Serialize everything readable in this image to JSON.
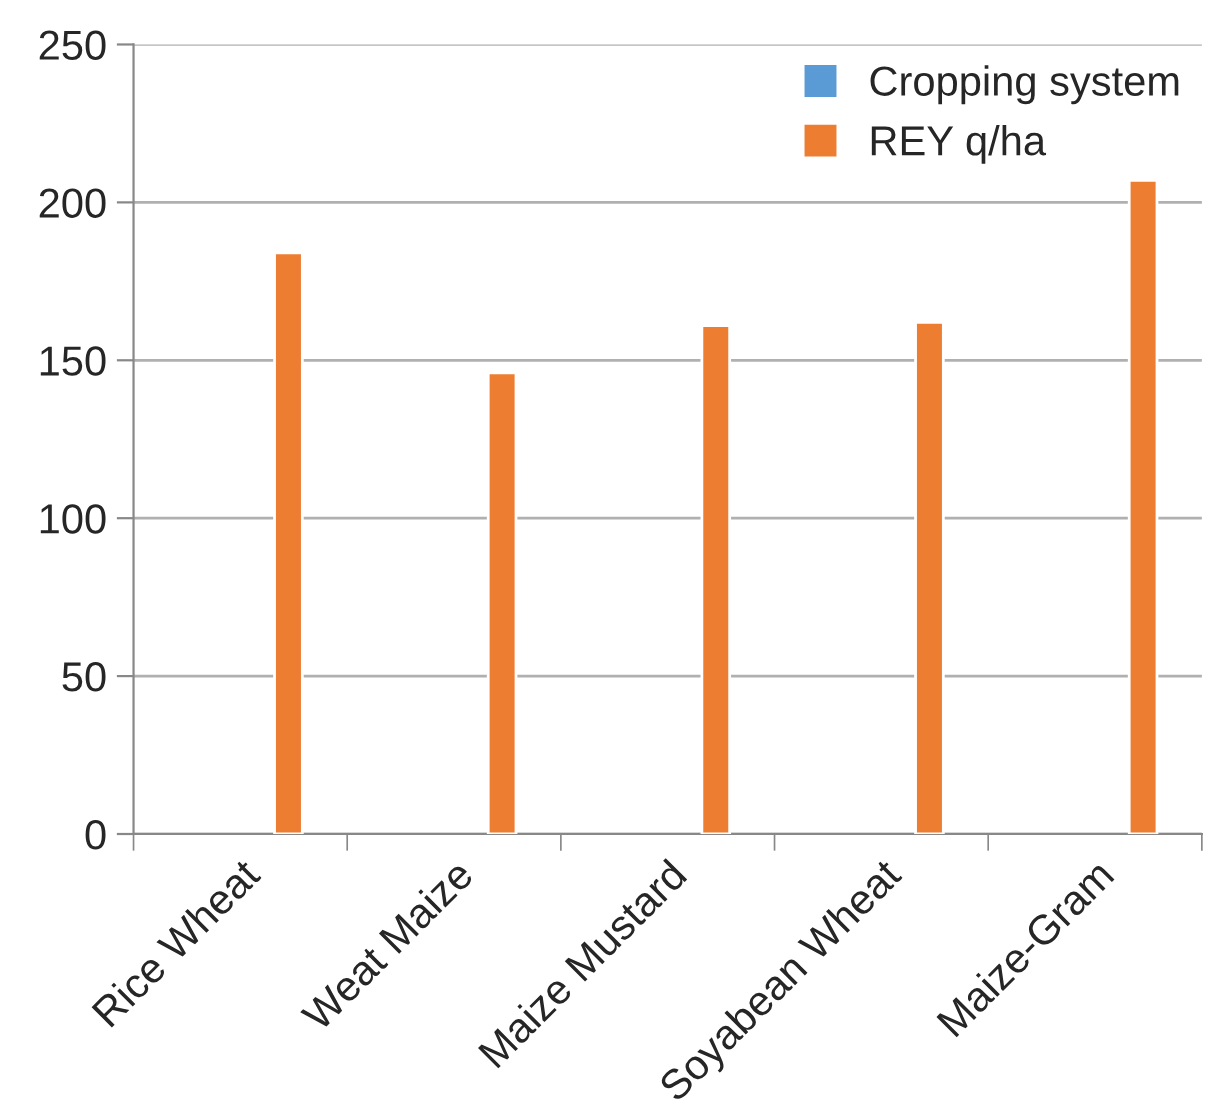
{
  "chart_data": {
    "type": "bar",
    "categories": [
      "Rice Wheat",
      "Weat Maize",
      "Maize Mustard",
      "Soyabean Wheat",
      "Maize-Gram"
    ],
    "series": [
      {
        "name": "Cropping system",
        "color": "#5b9bd5",
        "values": [
          null,
          null,
          null,
          null,
          null
        ]
      },
      {
        "name": "REY q/ha",
        "color": "#ed7d31",
        "values": [
          184,
          146,
          161,
          162,
          207
        ]
      }
    ],
    "ylim": [
      0,
      250
    ],
    "yticks": [
      0,
      50,
      100,
      150,
      200,
      250
    ],
    "grid": "y",
    "legend": "top right"
  }
}
